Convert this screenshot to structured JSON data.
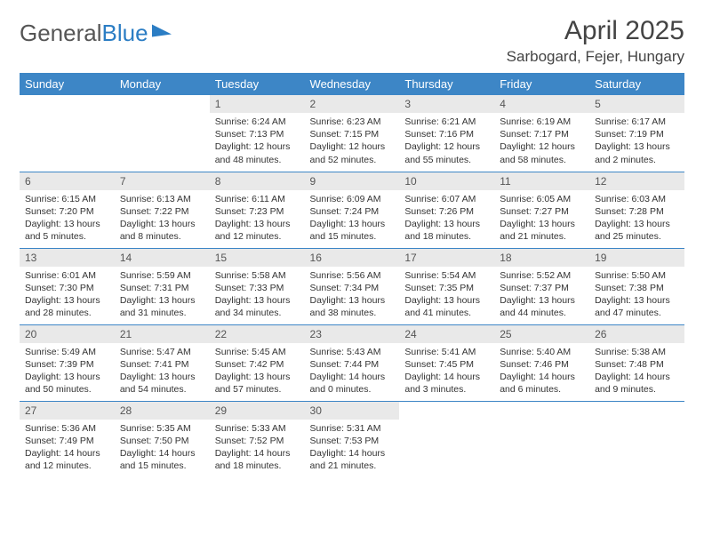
{
  "brand": {
    "part1": "General",
    "part2": "Blue"
  },
  "title": "April 2025",
  "location": "Sarbogard, Fejer, Hungary",
  "colors": {
    "header_bg": "#3d86c6",
    "header_text": "#ffffff",
    "daynum_bg": "#e9e9e9",
    "border": "#3d86c6",
    "background": "#ffffff"
  },
  "weekdays": [
    "Sunday",
    "Monday",
    "Tuesday",
    "Wednesday",
    "Thursday",
    "Friday",
    "Saturday"
  ],
  "grid": [
    [
      null,
      null,
      {
        "n": "1",
        "sunrise": "6:24 AM",
        "sunset": "7:13 PM",
        "daylight": "12 hours and 48 minutes."
      },
      {
        "n": "2",
        "sunrise": "6:23 AM",
        "sunset": "7:15 PM",
        "daylight": "12 hours and 52 minutes."
      },
      {
        "n": "3",
        "sunrise": "6:21 AM",
        "sunset": "7:16 PM",
        "daylight": "12 hours and 55 minutes."
      },
      {
        "n": "4",
        "sunrise": "6:19 AM",
        "sunset": "7:17 PM",
        "daylight": "12 hours and 58 minutes."
      },
      {
        "n": "5",
        "sunrise": "6:17 AM",
        "sunset": "7:19 PM",
        "daylight": "13 hours and 2 minutes."
      }
    ],
    [
      {
        "n": "6",
        "sunrise": "6:15 AM",
        "sunset": "7:20 PM",
        "daylight": "13 hours and 5 minutes."
      },
      {
        "n": "7",
        "sunrise": "6:13 AM",
        "sunset": "7:22 PM",
        "daylight": "13 hours and 8 minutes."
      },
      {
        "n": "8",
        "sunrise": "6:11 AM",
        "sunset": "7:23 PM",
        "daylight": "13 hours and 12 minutes."
      },
      {
        "n": "9",
        "sunrise": "6:09 AM",
        "sunset": "7:24 PM",
        "daylight": "13 hours and 15 minutes."
      },
      {
        "n": "10",
        "sunrise": "6:07 AM",
        "sunset": "7:26 PM",
        "daylight": "13 hours and 18 minutes."
      },
      {
        "n": "11",
        "sunrise": "6:05 AM",
        "sunset": "7:27 PM",
        "daylight": "13 hours and 21 minutes."
      },
      {
        "n": "12",
        "sunrise": "6:03 AM",
        "sunset": "7:28 PM",
        "daylight": "13 hours and 25 minutes."
      }
    ],
    [
      {
        "n": "13",
        "sunrise": "6:01 AM",
        "sunset": "7:30 PM",
        "daylight": "13 hours and 28 minutes."
      },
      {
        "n": "14",
        "sunrise": "5:59 AM",
        "sunset": "7:31 PM",
        "daylight": "13 hours and 31 minutes."
      },
      {
        "n": "15",
        "sunrise": "5:58 AM",
        "sunset": "7:33 PM",
        "daylight": "13 hours and 34 minutes."
      },
      {
        "n": "16",
        "sunrise": "5:56 AM",
        "sunset": "7:34 PM",
        "daylight": "13 hours and 38 minutes."
      },
      {
        "n": "17",
        "sunrise": "5:54 AM",
        "sunset": "7:35 PM",
        "daylight": "13 hours and 41 minutes."
      },
      {
        "n": "18",
        "sunrise": "5:52 AM",
        "sunset": "7:37 PM",
        "daylight": "13 hours and 44 minutes."
      },
      {
        "n": "19",
        "sunrise": "5:50 AM",
        "sunset": "7:38 PM",
        "daylight": "13 hours and 47 minutes."
      }
    ],
    [
      {
        "n": "20",
        "sunrise": "5:49 AM",
        "sunset": "7:39 PM",
        "daylight": "13 hours and 50 minutes."
      },
      {
        "n": "21",
        "sunrise": "5:47 AM",
        "sunset": "7:41 PM",
        "daylight": "13 hours and 54 minutes."
      },
      {
        "n": "22",
        "sunrise": "5:45 AM",
        "sunset": "7:42 PM",
        "daylight": "13 hours and 57 minutes."
      },
      {
        "n": "23",
        "sunrise": "5:43 AM",
        "sunset": "7:44 PM",
        "daylight": "14 hours and 0 minutes."
      },
      {
        "n": "24",
        "sunrise": "5:41 AM",
        "sunset": "7:45 PM",
        "daylight": "14 hours and 3 minutes."
      },
      {
        "n": "25",
        "sunrise": "5:40 AM",
        "sunset": "7:46 PM",
        "daylight": "14 hours and 6 minutes."
      },
      {
        "n": "26",
        "sunrise": "5:38 AM",
        "sunset": "7:48 PM",
        "daylight": "14 hours and 9 minutes."
      }
    ],
    [
      {
        "n": "27",
        "sunrise": "5:36 AM",
        "sunset": "7:49 PM",
        "daylight": "14 hours and 12 minutes."
      },
      {
        "n": "28",
        "sunrise": "5:35 AM",
        "sunset": "7:50 PM",
        "daylight": "14 hours and 15 minutes."
      },
      {
        "n": "29",
        "sunrise": "5:33 AM",
        "sunset": "7:52 PM",
        "daylight": "14 hours and 18 minutes."
      },
      {
        "n": "30",
        "sunrise": "5:31 AM",
        "sunset": "7:53 PM",
        "daylight": "14 hours and 21 minutes."
      },
      null,
      null,
      null
    ]
  ]
}
